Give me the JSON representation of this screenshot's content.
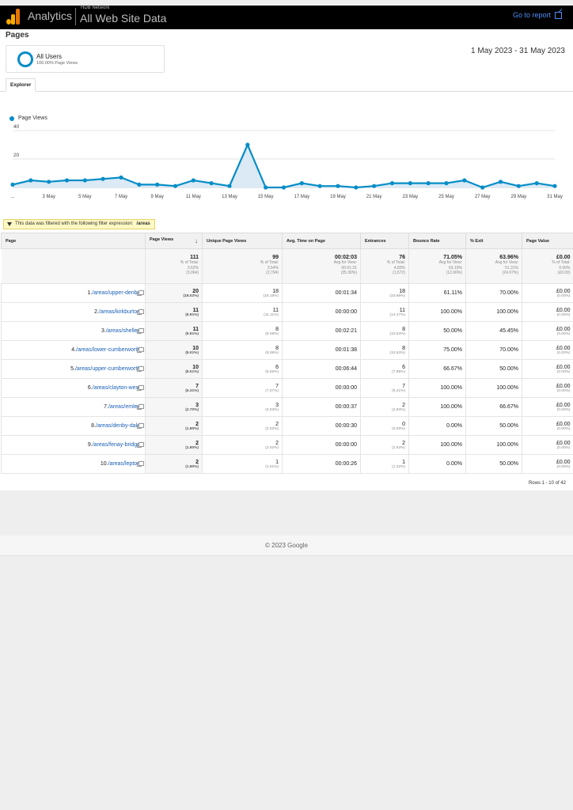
{
  "topbar": {
    "app_name": "Analytics",
    "network": "HDB Network",
    "property": "All Web Site Data",
    "goto_label": "Go to report"
  },
  "header": {
    "page_title": "Pages",
    "segment_name": "All Users",
    "segment_sub": "100.00% Page Views",
    "date_range": "1 May 2023 - 31 May 2023",
    "tab_label": "Explorer"
  },
  "chart_data": {
    "type": "line",
    "series": [
      {
        "name": "Page Views",
        "values": [
          2,
          5,
          4,
          5,
          5,
          6,
          7,
          2,
          2,
          1,
          5,
          3,
          1,
          30,
          0,
          0,
          3,
          1,
          1,
          0,
          1,
          3,
          3,
          3,
          3,
          5,
          0,
          4,
          1,
          3,
          1
        ]
      }
    ],
    "x": [
      1,
      2,
      3,
      4,
      5,
      6,
      7,
      8,
      9,
      10,
      11,
      12,
      13,
      14,
      15,
      16,
      17,
      18,
      19,
      20,
      21,
      22,
      23,
      24,
      25,
      26,
      27,
      28,
      29,
      30,
      31
    ],
    "x_tick_labels": [
      "...",
      "3 May",
      "5 May",
      "7 May",
      "9 May",
      "11 May",
      "13 May",
      "15 May",
      "17 May",
      "19 May",
      "21 May",
      "23 May",
      "25 May",
      "27 May",
      "29 May",
      "31 May"
    ],
    "y_ticks": [
      "40",
      "20"
    ],
    "ylim": [
      0,
      40
    ],
    "color": "#058dc7",
    "fill": "#dbeaf5",
    "grid": true,
    "legend": "top-left"
  },
  "filter": {
    "text": "This data was filtered with the following filter expression:",
    "expression": "/areas"
  },
  "table": {
    "headers": {
      "page": "Page",
      "page_views": "Page Views",
      "unique": "Unique Page Views",
      "avg_time": "Avg. Time on Page",
      "entrances": "Entrances",
      "bounce": "Bounce Rate",
      "exit": "% Exit",
      "value": "Page Value"
    },
    "totals": {
      "page_views": {
        "main": "111",
        "l1": "% of Total:",
        "l2": "3.62%",
        "l3": "(3,064)"
      },
      "unique": {
        "main": "99",
        "l1": "% of Total:",
        "l2": "3.54%",
        "l3": "(2,794)"
      },
      "avg_time": {
        "main": "00:02:03",
        "l1": "Avg for View:",
        "l2": "00:01:31",
        "l3": "(35.30%)"
      },
      "entrances": {
        "main": "76",
        "l1": "% of Total:",
        "l2": "4.83%",
        "l3": "(1,572)"
      },
      "bounce": {
        "main": "71.05%",
        "l1": "Avg for View:",
        "l2": "63.10%",
        "l3": "(12.60%)"
      },
      "exit": {
        "main": "63.96%",
        "l1": "Avg for View:",
        "l2": "51.31%",
        "l3": "(24.67%)"
      },
      "value": {
        "main": "£0.00",
        "l1": "% of Total:",
        "l2": "0.00%",
        "l3": "(£0.00)"
      }
    },
    "rows": [
      {
        "idx": "1.",
        "page": "/areas/upper-denby/",
        "pv": "20",
        "pv_pct": "(18.02%)",
        "upv": "18",
        "upv_pct": "(18.18%)",
        "time": "00:01:34",
        "ent": "18",
        "ent_pct": "(23.68%)",
        "bounce": "61.11%",
        "exit": "70.00%",
        "value": "£0.00",
        "value_pct": "(0.00%)"
      },
      {
        "idx": "2.",
        "page": "/areas/kirkburton/",
        "pv": "11",
        "pv_pct": "(9.91%)",
        "upv": "11",
        "upv_pct": "(11.11%)",
        "time": "00:00:00",
        "ent": "11",
        "ent_pct": "(14.47%)",
        "bounce": "100.00%",
        "exit": "100.00%",
        "value": "£0.00",
        "value_pct": "(0.00%)"
      },
      {
        "idx": "3.",
        "page": "/areas/shelley/",
        "pv": "11",
        "pv_pct": "(9.91%)",
        "upv": "8",
        "upv_pct": "(8.08%)",
        "time": "00:02:21",
        "ent": "8",
        "ent_pct": "(10.53%)",
        "bounce": "50.00%",
        "exit": "45.45%",
        "value": "£0.00",
        "value_pct": "(0.00%)"
      },
      {
        "idx": "4.",
        "page": "/areas/lower-cumberworth/",
        "pv": "10",
        "pv_pct": "(9.01%)",
        "upv": "8",
        "upv_pct": "(8.08%)",
        "time": "00:01:38",
        "ent": "8",
        "ent_pct": "(10.53%)",
        "bounce": "75.00%",
        "exit": "70.00%",
        "value": "£0.00",
        "value_pct": "(0.00%)"
      },
      {
        "idx": "5.",
        "page": "/areas/upper-cumberworth/",
        "pv": "10",
        "pv_pct": "(9.01%)",
        "upv": "6",
        "upv_pct": "(6.06%)",
        "time": "00:06:44",
        "ent": "6",
        "ent_pct": "(7.89%)",
        "bounce": "66.67%",
        "exit": "50.00%",
        "value": "£0.00",
        "value_pct": "(0.00%)"
      },
      {
        "idx": "6.",
        "page": "/areas/clayton-west/",
        "pv": "7",
        "pv_pct": "(6.31%)",
        "upv": "7",
        "upv_pct": "(7.07%)",
        "time": "00:00:00",
        "ent": "7",
        "ent_pct": "(9.21%)",
        "bounce": "100.00%",
        "exit": "100.00%",
        "value": "£0.00",
        "value_pct": "(0.00%)"
      },
      {
        "idx": "7.",
        "page": "/areas/emley/",
        "pv": "3",
        "pv_pct": "(2.70%)",
        "upv": "3",
        "upv_pct": "(3.03%)",
        "time": "00:00:37",
        "ent": "2",
        "ent_pct": "(2.63%)",
        "bounce": "100.00%",
        "exit": "66.67%",
        "value": "£0.00",
        "value_pct": "(0.00%)"
      },
      {
        "idx": "8.",
        "page": "/areas/denby-dale/",
        "pv": "2",
        "pv_pct": "(1.80%)",
        "upv": "2",
        "upv_pct": "(2.02%)",
        "time": "00:00:30",
        "ent": "0",
        "ent_pct": "(0.00%)",
        "bounce": "0.00%",
        "exit": "50.00%",
        "value": "£0.00",
        "value_pct": "(0.00%)"
      },
      {
        "idx": "9.",
        "page": "/areas/fenay-bridge/",
        "pv": "2",
        "pv_pct": "(1.80%)",
        "upv": "2",
        "upv_pct": "(2.02%)",
        "time": "00:00:00",
        "ent": "2",
        "ent_pct": "(2.63%)",
        "bounce": "100.00%",
        "exit": "100.00%",
        "value": "£0.00",
        "value_pct": "(0.00%)"
      },
      {
        "idx": "10.",
        "page": "/areas/lepton/",
        "pv": "2",
        "pv_pct": "(1.80%)",
        "upv": "1",
        "upv_pct": "(1.01%)",
        "time": "00:00:26",
        "ent": "1",
        "ent_pct": "(1.32%)",
        "bounce": "0.00%",
        "exit": "50.00%",
        "value": "£0.00",
        "value_pct": "(0.00%)"
      }
    ],
    "rows_info": "Rows 1 - 10 of 42"
  },
  "footer": {
    "copyright": "© 2023 Google"
  }
}
